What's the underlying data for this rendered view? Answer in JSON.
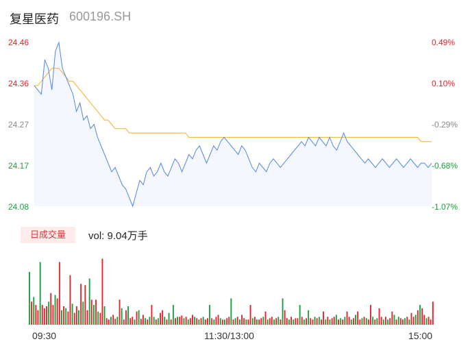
{
  "stock": {
    "name": "复星医药",
    "code": "600196.SH"
  },
  "colors": {
    "up": "#e8222b",
    "down": "#14a33a",
    "neutral": "#888888",
    "price_line": "#4f86e6",
    "avg_line": "#f5b026",
    "area": "#f4f7fd",
    "tab_bg": "#fdecea"
  },
  "volume_panel": {
    "tab_label": "日成交量",
    "vol_text": "vol: 9.04万手"
  },
  "x_ticks": [
    "09:30",
    "11:30/13:00",
    "15:00"
  ],
  "chart_data": [
    {
      "type": "line",
      "title": "",
      "y_ticks": [
        "24.46",
        "24.36",
        "24.27",
        "24.17",
        "24.08"
      ],
      "y_ticks_right": [
        "0.49%",
        "0.10%",
        "-0.29%",
        "-0.68%",
        "-1.07%"
      ],
      "ylim": [
        24.08,
        24.46
      ],
      "prev_close": 24.34,
      "series": [
        {
          "key": "price",
          "values": [
            24.36,
            24.35,
            24.34,
            24.42,
            24.4,
            24.35,
            24.44,
            24.46,
            24.4,
            24.38,
            24.36,
            24.34,
            24.3,
            24.32,
            24.28,
            24.29,
            24.26,
            24.27,
            24.24,
            24.22,
            24.2,
            24.18,
            24.16,
            24.17,
            24.15,
            24.13,
            24.12,
            24.1,
            24.08,
            24.11,
            24.14,
            24.13,
            24.16,
            24.17,
            24.15,
            24.16,
            24.18,
            24.16,
            24.15,
            24.17,
            24.19,
            24.18,
            24.16,
            24.18,
            24.2,
            24.19,
            24.21,
            24.22,
            24.2,
            24.18,
            24.2,
            24.22,
            24.21,
            24.23,
            24.24,
            24.23,
            24.22,
            24.21,
            24.2,
            24.22,
            24.21,
            24.19,
            24.17,
            24.16,
            24.18,
            24.17,
            24.16,
            24.18,
            24.19,
            24.18,
            24.17,
            24.18,
            24.19,
            24.2,
            24.21,
            24.22,
            24.23,
            24.22,
            24.24,
            24.23,
            24.22,
            24.24,
            24.23,
            24.22,
            24.24,
            24.22,
            24.21,
            24.23,
            24.25,
            24.23,
            24.22,
            24.21,
            24.2,
            24.19,
            24.18,
            24.19,
            24.18,
            24.17,
            24.18,
            24.19,
            24.18,
            24.17,
            24.18,
            24.19,
            24.18,
            24.17,
            24.18,
            24.19,
            24.18,
            24.17,
            24.18,
            24.18,
            24.17,
            24.18
          ],
          "color_key": "price_line"
        },
        {
          "key": "avg",
          "values": [
            24.36,
            24.36,
            24.37,
            24.38,
            24.39,
            24.4,
            24.4,
            24.4,
            24.39,
            24.38,
            24.37,
            24.37,
            24.36,
            24.35,
            24.34,
            24.33,
            24.32,
            24.31,
            24.3,
            24.29,
            24.28,
            24.28,
            24.27,
            24.26,
            24.26,
            24.26,
            24.26,
            24.25,
            24.25,
            24.25,
            24.25,
            24.25,
            24.25,
            24.25,
            24.25,
            24.25,
            24.25,
            24.25,
            24.25,
            24.25,
            24.25,
            24.25,
            24.25,
            24.25,
            24.24,
            24.24,
            24.24,
            24.24,
            24.24,
            24.24,
            24.24,
            24.24,
            24.24,
            24.24,
            24.24,
            24.24,
            24.24,
            24.24,
            24.24,
            24.24,
            24.24,
            24.24,
            24.24,
            24.24,
            24.24,
            24.24,
            24.24,
            24.24,
            24.24,
            24.24,
            24.24,
            24.24,
            24.24,
            24.24,
            24.24,
            24.24,
            24.24,
            24.24,
            24.24,
            24.24,
            24.24,
            24.24,
            24.24,
            24.24,
            24.24,
            24.24,
            24.24,
            24.24,
            24.24,
            24.24,
            24.24,
            24.24,
            24.24,
            24.24,
            24.24,
            24.24,
            24.24,
            24.24,
            24.24,
            24.24,
            24.24,
            24.24,
            24.24,
            24.24,
            24.24,
            24.24,
            24.24,
            24.24,
            24.24,
            24.24,
            24.23,
            24.23,
            24.23,
            24.23
          ],
          "color_key": "avg_line"
        }
      ]
    },
    {
      "type": "bar",
      "title": "",
      "ylim": [
        0,
        110
      ],
      "values": [
        80,
        35,
        42,
        30,
        22,
        95,
        30,
        25,
        28,
        35,
        48,
        30,
        45,
        40,
        95,
        22,
        28,
        25,
        20,
        75,
        32,
        18,
        28,
        22,
        62,
        35,
        60,
        22,
        70,
        38,
        30,
        38,
        20,
        18,
        100,
        28,
        10,
        8,
        12,
        15,
        9,
        12,
        38,
        25,
        8,
        22,
        28,
        10,
        12,
        8,
        20,
        22,
        9,
        15,
        10,
        8,
        12,
        30,
        12,
        8,
        10,
        18,
        22,
        12,
        8,
        18,
        8,
        30,
        10,
        12,
        12,
        14,
        10,
        12,
        8,
        10,
        15,
        12,
        10,
        8,
        10,
        12,
        8,
        10,
        30,
        10,
        8,
        12,
        15,
        10,
        8,
        8,
        10,
        12,
        40,
        8,
        10,
        12,
        8,
        15,
        10,
        8,
        8,
        30,
        10,
        12,
        8,
        8,
        10,
        12,
        20,
        8,
        10,
        12,
        8,
        10,
        12,
        8,
        40,
        22,
        10,
        8,
        12,
        8,
        10,
        10,
        30,
        12,
        8,
        10,
        22,
        10,
        8,
        12,
        10,
        12,
        8,
        20,
        8,
        12,
        8,
        10,
        12,
        15,
        8,
        10,
        8,
        12,
        20,
        12,
        8,
        10,
        15,
        20,
        8,
        10,
        12,
        10,
        8,
        30,
        12,
        8,
        10,
        25,
        12,
        8,
        12,
        8,
        10,
        20,
        15,
        8,
        12,
        10,
        8,
        10,
        12,
        8,
        18,
        12,
        15,
        22,
        30,
        25,
        15,
        10,
        12,
        8,
        35
      ],
      "colors": [
        "down",
        "up",
        "down",
        "up",
        "up",
        "down",
        "up",
        "up",
        "up",
        "down",
        "up",
        "up",
        "down",
        "up",
        "up",
        "down",
        "up",
        "down",
        "up",
        "up",
        "down",
        "up",
        "up",
        "down",
        "up",
        "down",
        "up",
        "up",
        "down",
        "up",
        "down",
        "up",
        "down",
        "up",
        "up",
        "down",
        "up",
        "up",
        "down",
        "up",
        "up",
        "down",
        "up",
        "down",
        "up",
        "up",
        "down",
        "up",
        "up",
        "down",
        "up",
        "down",
        "up",
        "up",
        "down",
        "up",
        "down",
        "up",
        "down",
        "up",
        "down",
        "up",
        "up",
        "down",
        "up",
        "down",
        "up",
        "down",
        "up",
        "down",
        "up",
        "up",
        "down",
        "up",
        "down",
        "up",
        "up",
        "down",
        "up",
        "down",
        "up",
        "down",
        "up",
        "up",
        "down",
        "up",
        "down",
        "up",
        "up",
        "down",
        "up",
        "down",
        "up",
        "up",
        "down",
        "up",
        "down",
        "up",
        "down",
        "up",
        "up",
        "down",
        "up",
        "up",
        "down",
        "up",
        "down",
        "up",
        "up",
        "down",
        "up",
        "down",
        "up",
        "up",
        "down",
        "up",
        "down",
        "up",
        "down",
        "up",
        "up",
        "down",
        "up",
        "down",
        "up",
        "up",
        "down",
        "up",
        "down",
        "up",
        "down",
        "up",
        "up",
        "down",
        "up",
        "down",
        "up",
        "up",
        "down",
        "up",
        "down",
        "up",
        "up",
        "down",
        "up",
        "down",
        "up",
        "down",
        "up",
        "up",
        "down",
        "up",
        "down",
        "up",
        "up",
        "down",
        "up",
        "down",
        "up",
        "up",
        "down",
        "up",
        "down",
        "up",
        "up",
        "down",
        "up",
        "down",
        "up",
        "up",
        "down",
        "up",
        "down",
        "up",
        "up",
        "down",
        "up",
        "down",
        "up",
        "up",
        "down",
        "up",
        "down",
        "up",
        "up",
        "down"
      ]
    }
  ]
}
